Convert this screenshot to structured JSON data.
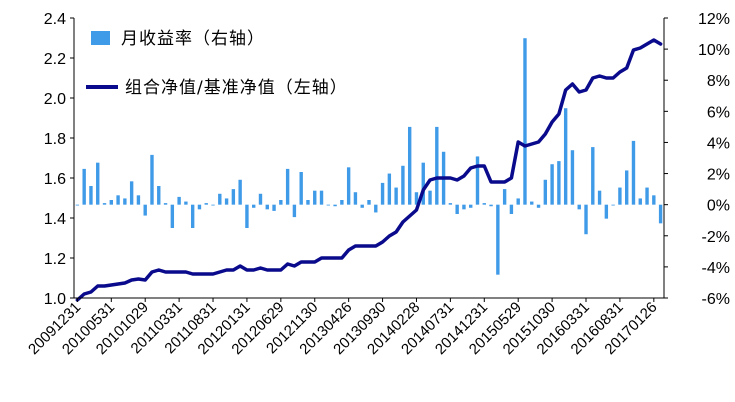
{
  "chart_data": {
    "type": "bar+line",
    "legend": {
      "bar_label": "月收益率（右轴）",
      "line_label": "组合净值/基准净值（左轴）",
      "placement": "top-left"
    },
    "colors": {
      "bar": "#3f9ae8",
      "line": "#0a0a8c"
    },
    "y_left": {
      "min": 1.0,
      "max": 2.4,
      "ticks": [
        "1.0",
        "1.2",
        "1.4",
        "1.6",
        "1.8",
        "2.0",
        "2.2",
        "2.4"
      ]
    },
    "y_right": {
      "min": -6,
      "max": 12,
      "unit": "%",
      "ticks": [
        "-6%",
        "-4%",
        "-2%",
        "0%",
        "2%",
        "4%",
        "6%",
        "8%",
        "10%",
        "12%"
      ]
    },
    "x_tick_labels": [
      "20091231",
      "20100531",
      "20101029",
      "20110331",
      "20110831",
      "20120131",
      "20120629",
      "20121130",
      "20130426",
      "20130930",
      "20140228",
      "20140731",
      "20141231",
      "20150529",
      "20151030",
      "20160331",
      "20160831",
      "20170126"
    ],
    "x_tick_indices": [
      0,
      5,
      10,
      15,
      20,
      25,
      30,
      35,
      40,
      45,
      50,
      55,
      60,
      65,
      70,
      75,
      80,
      85
    ],
    "monthly_return_pct": [
      0,
      2.3,
      1.2,
      2.7,
      0.1,
      0.3,
      0.6,
      0.4,
      1.5,
      0.6,
      -0.7,
      3.2,
      1.2,
      0.1,
      -1.5,
      0.5,
      0.2,
      -1.5,
      -0.3,
      0.1,
      0.0,
      0.7,
      0.4,
      1.0,
      1.6,
      -1.5,
      -0.2,
      0.7,
      -0.3,
      -0.4,
      0.3,
      2.3,
      -0.8,
      2.1,
      0.3,
      0.9,
      0.9,
      0.0,
      -0.1,
      0.3,
      2.4,
      0.8,
      -0.2,
      0.3,
      -0.5,
      1.4,
      2.0,
      1.1,
      2.5,
      5.0,
      0.8,
      2.7,
      0.9,
      5.0,
      3.4,
      0.1,
      -0.6,
      -0.3,
      -0.2,
      3.1,
      0.1,
      -0.1,
      -4.5,
      1.0,
      -0.6,
      0.4,
      10.7,
      0.2,
      -0.2,
      1.6,
      2.6,
      2.8,
      6.2,
      3.5,
      -0.3,
      -1.9,
      3.7,
      0.9,
      -0.9,
      0.0,
      1.1,
      2.2,
      4.1,
      0.4,
      1.1,
      0.6,
      -1.2
    ],
    "nav_ratio": [
      0.99,
      1.02,
      1.03,
      1.06,
      1.06,
      1.065,
      1.07,
      1.075,
      1.09,
      1.095,
      1.09,
      1.13,
      1.14,
      1.13,
      1.13,
      1.13,
      1.13,
      1.12,
      1.12,
      1.12,
      1.12,
      1.13,
      1.14,
      1.14,
      1.16,
      1.14,
      1.14,
      1.15,
      1.14,
      1.14,
      1.14,
      1.17,
      1.16,
      1.18,
      1.18,
      1.18,
      1.2,
      1.2,
      1.2,
      1.2,
      1.24,
      1.26,
      1.26,
      1.26,
      1.26,
      1.28,
      1.31,
      1.33,
      1.38,
      1.41,
      1.44,
      1.54,
      1.59,
      1.6,
      1.6,
      1.6,
      1.59,
      1.61,
      1.65,
      1.66,
      1.66,
      1.58,
      1.58,
      1.58,
      1.6,
      1.78,
      1.76,
      1.77,
      1.78,
      1.82,
      1.88,
      1.92,
      2.04,
      2.07,
      2.03,
      2.04,
      2.1,
      2.11,
      2.1,
      2.1,
      2.13,
      2.15,
      2.24,
      2.25,
      2.27,
      2.29,
      2.27
    ]
  }
}
